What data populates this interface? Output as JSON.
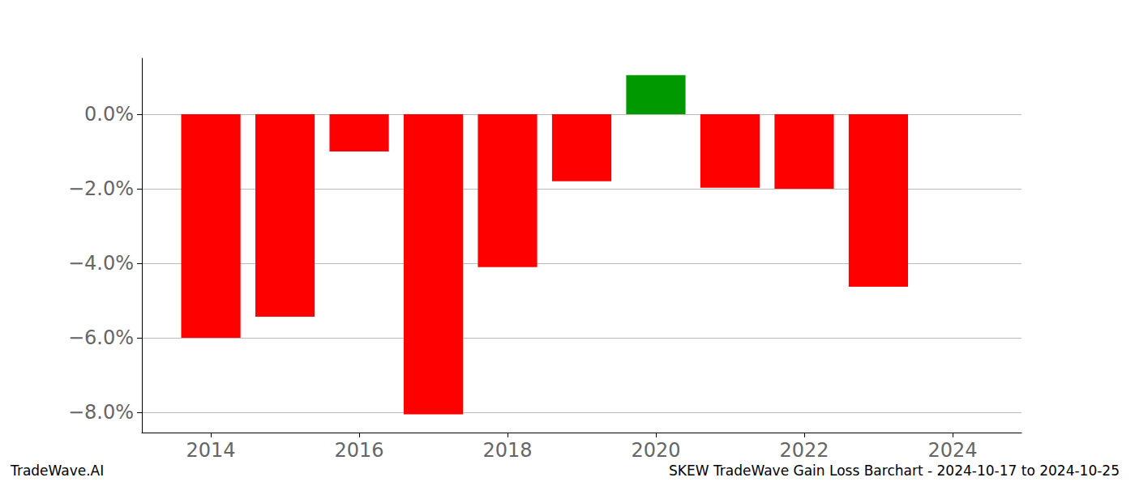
{
  "chart_data": {
    "type": "bar",
    "title": "SKEW TradeWave Gain Loss Barchart - 2024-10-17 to 2024-10-25",
    "annotations": [
      "TradeWave.AI"
    ],
    "x": [
      2014,
      2015,
      2016,
      2017,
      2018,
      2019,
      2020,
      2021,
      2022,
      2023
    ],
    "values": [
      -6.0,
      -5.43,
      -1.0,
      -8.05,
      -4.1,
      -1.8,
      1.05,
      -1.97,
      -2.0,
      -4.63
    ],
    "colors": [
      "#ff0000",
      "#ff0000",
      "#ff0000",
      "#ff0000",
      "#ff0000",
      "#ff0000",
      "#009900",
      "#ff0000",
      "#ff0000",
      "#ff0000"
    ],
    "xlim": [
      2013.07,
      2024.93
    ],
    "xticks": [
      2014,
      2016,
      2018,
      2020,
      2022,
      2024
    ],
    "ylim": [
      -8.54,
      1.5
    ],
    "yticks": [
      {
        "value": -8,
        "label": "−8.0%"
      },
      {
        "value": -6,
        "label": "−6.0%"
      },
      {
        "value": -4,
        "label": "−4.0%"
      },
      {
        "value": -2,
        "label": "−2.0%"
      },
      {
        "value": 0,
        "label": "0.0%"
      }
    ],
    "grid": true
  }
}
